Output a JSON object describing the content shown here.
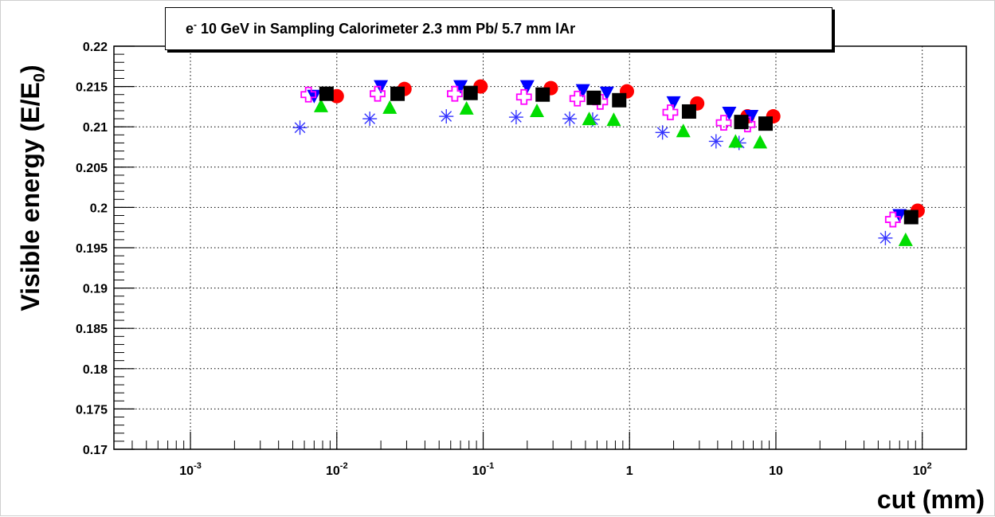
{
  "chart_data": {
    "type": "scatter",
    "title": {
      "particle": "e",
      "charge": "-",
      "text": " 10 GeV in Sampling Calorimeter 2.3 mm Pb/ 5.7 mm lAr"
    },
    "xlabel": "cut (mm)",
    "ylabel": {
      "main": "Visible energy (E/E",
      "sub": "0",
      "close": ")"
    },
    "x_scale": "log",
    "xlim": [
      0.0003,
      200
    ],
    "ylim": [
      0.17,
      0.22
    ],
    "grid": true,
    "y_ticks": [
      0.17,
      0.175,
      0.18,
      0.185,
      0.19,
      0.195,
      0.2,
      0.205,
      0.21,
      0.215,
      0.22
    ],
    "y_tick_labels": [
      "0.17",
      "0.175",
      "0.18",
      "0.185",
      "0.19",
      "0.195",
      "0.2",
      "0.205",
      "0.21",
      "0.215",
      "0.22"
    ],
    "x_ticks": [
      {
        "value": 0.001,
        "base": "10",
        "exp": "-3"
      },
      {
        "value": 0.01,
        "base": "10",
        "exp": "-2"
      },
      {
        "value": 0.1,
        "base": "10",
        "exp": "-1"
      },
      {
        "value": 1,
        "base": "1",
        "exp": ""
      },
      {
        "value": 10,
        "base": "10",
        "exp": ""
      },
      {
        "value": 100,
        "base": "10",
        "exp": "2"
      }
    ],
    "series": [
      {
        "marker": "circle",
        "color": "#ff0000",
        "x": [
          0.01,
          0.029,
          0.096,
          0.29,
          0.96,
          2.9,
          6.4,
          9.6,
          93
        ],
        "y": [
          0.2138,
          0.2147,
          0.215,
          0.2148,
          0.2144,
          0.2129,
          0.2113,
          0.2113,
          0.1996
        ]
      },
      {
        "marker": "triangle-down",
        "color": "#0000ff",
        "x": [
          0.007,
          0.02,
          0.07,
          0.2,
          0.48,
          0.7,
          2.0,
          4.8,
          6.8,
          70
        ],
        "y": [
          0.2138,
          0.215,
          0.215,
          0.215,
          0.2145,
          0.2142,
          0.213,
          0.2117,
          0.2113,
          0.199
        ]
      },
      {
        "marker": "square",
        "color": "#000000",
        "x": [
          0.0085,
          0.026,
          0.082,
          0.255,
          0.57,
          0.85,
          2.55,
          5.8,
          8.5,
          84
        ],
        "y": [
          0.2141,
          0.2141,
          0.2142,
          0.214,
          0.2136,
          0.2133,
          0.2119,
          0.2106,
          0.2104,
          0.1988
        ]
      },
      {
        "marker": "triangle-up",
        "color": "#00dd00",
        "x": [
          0.0078,
          0.023,
          0.077,
          0.233,
          0.53,
          0.78,
          2.33,
          5.3,
          7.8,
          77
        ],
        "y": [
          0.2126,
          0.2124,
          0.2123,
          0.212,
          0.211,
          0.2109,
          0.2095,
          0.2082,
          0.2081,
          0.196
        ]
      },
      {
        "marker": "open-cross",
        "color": "#ff00ff",
        "x": [
          0.0064,
          0.019,
          0.064,
          0.19,
          0.44,
          0.63,
          1.9,
          4.4,
          6.4,
          63
        ],
        "y": [
          0.214,
          0.2141,
          0.2141,
          0.2137,
          0.2135,
          0.2131,
          0.2118,
          0.2105,
          0.2103,
          0.1985
        ]
      },
      {
        "marker": "asterisk",
        "color": "#3333ff",
        "x": [
          0.0056,
          0.0168,
          0.056,
          0.168,
          0.39,
          0.56,
          1.68,
          3.9,
          5.6,
          56
        ],
        "y": [
          0.2099,
          0.211,
          0.2113,
          0.2112,
          0.211,
          0.2109,
          0.2093,
          0.2082,
          0.208,
          0.1962
        ]
      }
    ]
  }
}
